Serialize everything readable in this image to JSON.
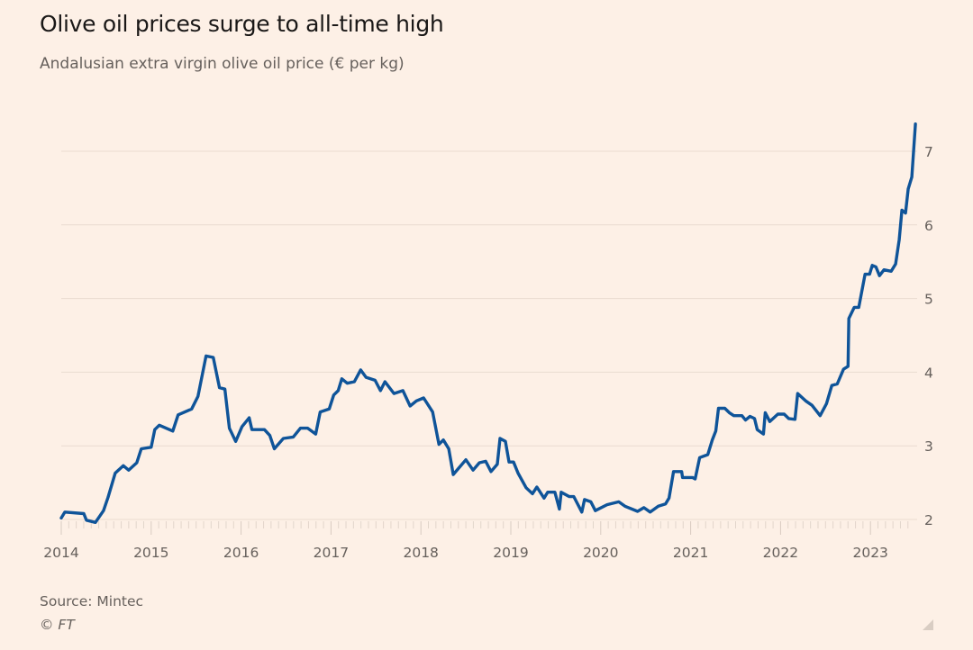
{
  "header": {
    "title": "Olive oil prices surge to all-time high",
    "subtitle": "Andalusian extra virgin olive oil price (€ per kg)"
  },
  "footer": {
    "source": "Source: Mintec",
    "credit": "© FT"
  },
  "chart_data": {
    "type": "line",
    "title": "Olive oil prices surge to all-time high",
    "subtitle": "Andalusian extra virgin olive oil price (€ per kg)",
    "xlabel": "",
    "ylabel": "",
    "xlim": [
      2014,
      2023.55
    ],
    "ylim": [
      2,
      7.4
    ],
    "x_ticks": [
      "2014",
      "2015",
      "2016",
      "2017",
      "2018",
      "2019",
      "2020",
      "2021",
      "2022",
      "2023"
    ],
    "y_ticks": [
      "2",
      "3",
      "4",
      "5",
      "6",
      "7"
    ],
    "y_axis_side": "right",
    "grid": "horizontal",
    "legend": "none",
    "line_color": "#0f5499",
    "series": [
      {
        "x": [
          2014.0,
          2014.04,
          2014.25,
          2014.28,
          2014.38,
          2014.47,
          2014.52,
          2014.6,
          2014.69,
          2014.75,
          2014.84,
          2014.89,
          2015.0,
          2015.04,
          2015.09,
          2015.24,
          2015.3,
          2015.45,
          2015.52,
          2015.61,
          2015.69,
          2015.76,
          2015.82,
          2015.87,
          2015.94,
          2016.01,
          2016.09,
          2016.12,
          2016.26,
          2016.32,
          2016.37,
          2016.47,
          2016.58,
          2016.66,
          2016.74,
          2016.83,
          2016.88,
          2016.98,
          2017.03,
          2017.08,
          2017.12,
          2017.18,
          2017.26,
          2017.33,
          2017.39,
          2017.49,
          2017.55,
          2017.6,
          2017.7,
          2017.8,
          2017.88,
          2017.95,
          2018.03,
          2018.13,
          2018.2,
          2018.25,
          2018.31,
          2018.36,
          2018.43,
          2018.5,
          2018.58,
          2018.65,
          2018.72,
          2018.78,
          2018.85,
          2018.88,
          2018.94,
          2018.98,
          2019.03,
          2019.08,
          2019.17,
          2019.24,
          2019.29,
          2019.37,
          2019.41,
          2019.49,
          2019.54,
          2019.56,
          2019.65,
          2019.7,
          2019.79,
          2019.82,
          2019.89,
          2019.94,
          2020.07,
          2020.2,
          2020.27,
          2020.41,
          2020.48,
          2020.55,
          2020.64,
          2020.72,
          2020.76,
          2020.81,
          2020.9,
          2020.91,
          2021.02,
          2021.05,
          2021.1,
          2021.19,
          2021.24,
          2021.28,
          2021.31,
          2021.38,
          2021.43,
          2021.48,
          2021.57,
          2021.61,
          2021.66,
          2021.71,
          2021.74,
          2021.81,
          2021.83,
          2021.88,
          2021.97,
          2022.04,
          2022.09,
          2022.16,
          2022.19,
          2022.28,
          2022.35,
          2022.44,
          2022.51,
          2022.57,
          2022.63,
          2022.7,
          2022.75,
          2022.76,
          2022.82,
          2022.87,
          2022.94,
          2022.99,
          2023.02,
          2023.06,
          2023.1,
          2023.15,
          2023.23,
          2023.28,
          2023.32,
          2023.35,
          2023.39,
          2023.42,
          2023.46,
          2023.5
        ],
        "values": [
          2.02,
          2.1,
          2.08,
          1.99,
          1.96,
          2.12,
          2.3,
          2.63,
          2.73,
          2.67,
          2.77,
          2.96,
          2.98,
          3.22,
          3.28,
          3.2,
          3.42,
          3.5,
          3.67,
          4.22,
          4.2,
          3.79,
          3.77,
          3.24,
          3.06,
          3.26,
          3.38,
          3.22,
          3.22,
          3.14,
          2.96,
          3.1,
          3.12,
          3.24,
          3.24,
          3.16,
          3.46,
          3.5,
          3.69,
          3.75,
          3.91,
          3.85,
          3.87,
          4.03,
          3.93,
          3.89,
          3.75,
          3.87,
          3.71,
          3.75,
          3.54,
          3.61,
          3.65,
          3.46,
          3.02,
          3.08,
          2.96,
          2.61,
          2.71,
          2.81,
          2.67,
          2.77,
          2.79,
          2.65,
          2.75,
          3.1,
          3.06,
          2.78,
          2.78,
          2.63,
          2.43,
          2.35,
          2.44,
          2.29,
          2.37,
          2.37,
          2.14,
          2.37,
          2.31,
          2.31,
          2.1,
          2.27,
          2.24,
          2.12,
          2.2,
          2.24,
          2.18,
          2.11,
          2.16,
          2.1,
          2.18,
          2.21,
          2.29,
          2.65,
          2.65,
          2.57,
          2.57,
          2.55,
          2.84,
          2.88,
          3.08,
          3.2,
          3.51,
          3.51,
          3.45,
          3.41,
          3.41,
          3.35,
          3.4,
          3.37,
          3.22,
          3.16,
          3.45,
          3.33,
          3.43,
          3.43,
          3.37,
          3.36,
          3.71,
          3.61,
          3.55,
          3.41,
          3.57,
          3.82,
          3.84,
          4.04,
          4.08,
          4.73,
          4.88,
          4.88,
          5.33,
          5.33,
          5.45,
          5.43,
          5.31,
          5.39,
          5.37,
          5.47,
          5.8,
          6.2,
          6.16,
          6.49,
          6.65,
          7.37
        ]
      }
    ]
  }
}
